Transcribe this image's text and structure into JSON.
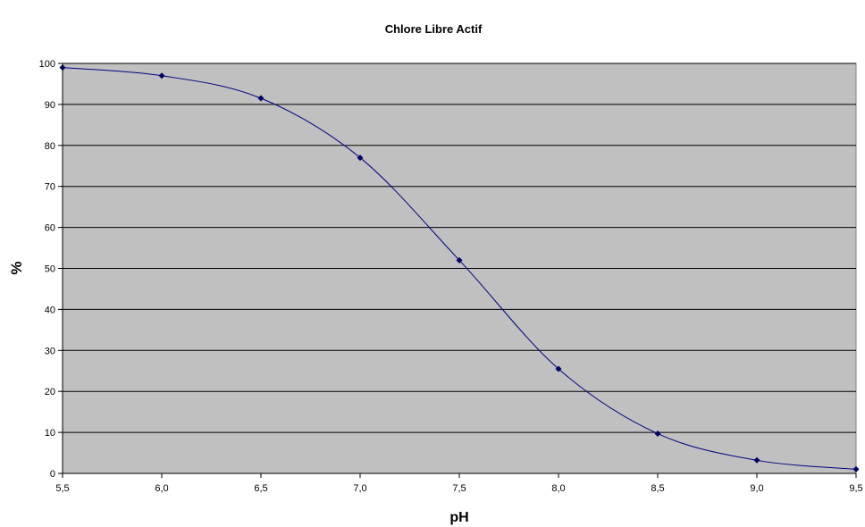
{
  "chart_data": {
    "type": "line",
    "title": "Chlore Libre Actif",
    "xlabel": "pH",
    "ylabel": "%",
    "x": [
      5.5,
      6.0,
      6.5,
      7.0,
      7.5,
      8.0,
      8.5,
      9.0,
      9.5
    ],
    "series": [
      {
        "values": [
          99,
          97,
          91.5,
          77,
          52,
          25.5,
          9.7,
          3.2,
          1
        ]
      }
    ],
    "xlim": [
      5.5,
      9.5
    ],
    "ylim": [
      0,
      100
    ],
    "xticks": [
      "5,5",
      "6,0",
      "6,5",
      "7,0",
      "7,5",
      "8,0",
      "8,5",
      "9,0",
      "9,5"
    ],
    "yticks": [
      "0",
      "10",
      "20",
      "30",
      "40",
      "50",
      "60",
      "70",
      "80",
      "90",
      "100"
    ],
    "grid": true,
    "colors": {
      "plot_background": "#c0c0c0",
      "series_line": "#00007f",
      "marker": "#000066",
      "grid": "#000000"
    }
  }
}
